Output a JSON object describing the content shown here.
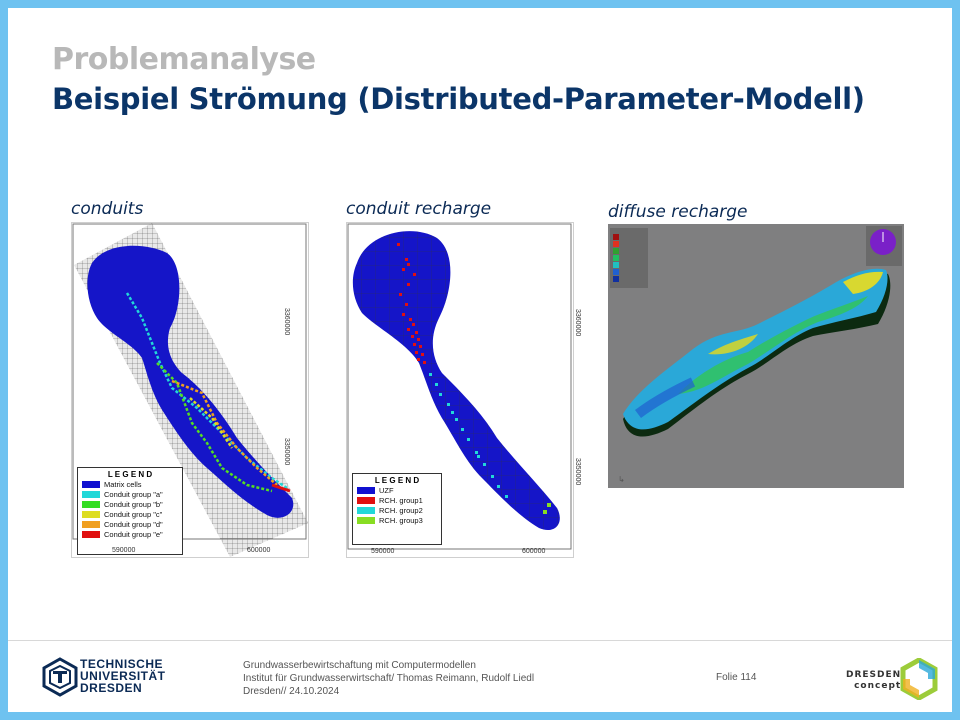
{
  "slide": {
    "pre_title": "Problemanalyse",
    "title": "Beispiel Strömung (Distributed-Parameter-Modell)"
  },
  "panels": [
    {
      "caption": "conduits",
      "legend_title": "L E G E N D",
      "legend": [
        {
          "label": "Matrix cells",
          "color": "#1010d0"
        },
        {
          "label": "Conduit group \"a\"",
          "color": "#22d8d8"
        },
        {
          "label": "Conduit group \"b\"",
          "color": "#33dd22"
        },
        {
          "label": "Conduit group \"c\"",
          "color": "#dddd22"
        },
        {
          "label": "Conduit group \"d\"",
          "color": "#f0a020"
        },
        {
          "label": "Conduit group \"e\"",
          "color": "#e01010"
        }
      ],
      "x_ticks": [
        "590000",
        "600000"
      ],
      "y_ticks": [
        "3360000",
        "3350000"
      ]
    },
    {
      "caption": "conduit recharge",
      "legend_title": "L E G E N D",
      "legend": [
        {
          "label": "UZF",
          "color": "#1010d0"
        },
        {
          "label": "RCH. group1",
          "color": "#e01010"
        },
        {
          "label": "RCH. group2",
          "color": "#22d8d8"
        },
        {
          "label": "RCH. group3",
          "color": "#88dd22"
        }
      ],
      "x_ticks": [
        "590000",
        "600000"
      ],
      "y_ticks": [
        "3360000",
        "3350000"
      ]
    },
    {
      "caption": "diffuse recharge"
    }
  ],
  "footer": {
    "line1": "Grundwasserbewirtschaftung mit Computermodellen",
    "line2": "Institut für Grundwasserwirtschaft/ Thomas Reimann, Rudolf Liedl",
    "line3": "Dresden// 24.10.2024",
    "folie": "Folie 114",
    "tud_line1": "TECHNISCHE",
    "tud_line2": "UNIVERSITÄT",
    "tud_line3": "DRESDEN",
    "dc_line1": "DRESDEN",
    "dc_line2": "concept"
  }
}
